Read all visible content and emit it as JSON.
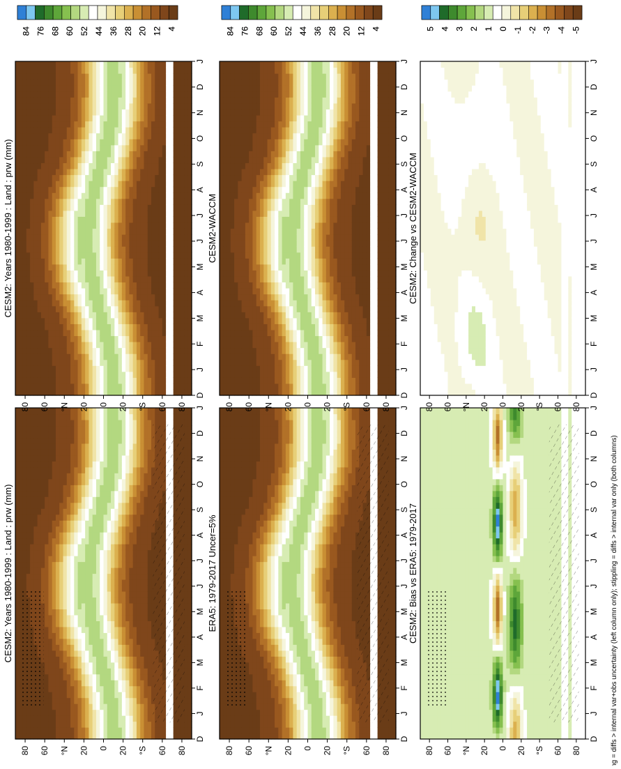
{
  "figure": {
    "footnote": "hatching = diffs > internal var+obs uncertainty (left column only); stippling = diffs > internal var only (both columns)",
    "x_tick_labels": [
      "D",
      "J",
      "F",
      "M",
      "A",
      "M",
      "J",
      "J",
      "A",
      "S",
      "O",
      "N",
      "D",
      "J"
    ],
    "y_tick_labels": [
      "80",
      "60",
      "°N",
      "20",
      "0",
      "20",
      "°S",
      "60",
      "80"
    ]
  },
  "colorbars": {
    "absolute": {
      "labels": [
        "84",
        "76",
        "68",
        "60",
        "52",
        "44",
        "36",
        "28",
        "20",
        "12",
        "4"
      ],
      "colors": [
        "#2f80d6",
        "#7ec7f0",
        "#1f6b2a",
        "#3e8a2d",
        "#5ea63a",
        "#86c04f",
        "#b3d880",
        "#d7ecb3",
        "#ffffff",
        "#f5f5dc",
        "#f0e4a8",
        "#e7cf78",
        "#dbb04f",
        "#c98f34",
        "#b27128",
        "#99581f",
        "#7f461b",
        "#6a3c17"
      ]
    },
    "difference": {
      "labels": [
        "5",
        "4",
        "3",
        "2",
        "1",
        "0",
        "-1",
        "-2",
        "-3",
        "-4",
        "-5"
      ],
      "colors": [
        "#2f80d6",
        "#7ec7f0",
        "#1f6b2a",
        "#3e8a2d",
        "#5ea63a",
        "#86c04f",
        "#b3d880",
        "#d7ecb3",
        "#ffffff",
        "#f5f5dc",
        "#f0e4a8",
        "#e7cf78",
        "#dbb04f",
        "#c98f34",
        "#b27128",
        "#99581f",
        "#7f461b",
        "#6a3c17"
      ]
    }
  },
  "chart_data": [
    {
      "type": "heatmap",
      "title": "CESM2: Years 1980-1999 : Land : prw (mm)",
      "x": [
        "D",
        "J",
        "F",
        "M",
        "A",
        "M",
        "J",
        "J",
        "A",
        "S",
        "O",
        "N",
        "D",
        "J"
      ],
      "y": [
        -80,
        -60,
        -40,
        -20,
        0,
        20,
        40,
        60,
        80
      ],
      "field": "climatology",
      "peak_value_approx": 60,
      "hatching": true,
      "stippling": true
    },
    {
      "type": "heatmap",
      "title": "CESM2: Years 1980-1999 : Land : prw (mm)",
      "x": [
        "D",
        "J",
        "F",
        "M",
        "A",
        "M",
        "J",
        "J",
        "A",
        "S",
        "O",
        "N",
        "D",
        "J"
      ],
      "y": [
        -80,
        -60,
        -40,
        -20,
        0,
        20,
        40,
        60,
        80
      ],
      "field": "climatology",
      "peak_value_approx": 60,
      "hatching": false,
      "stippling": false
    },
    {
      "type": "heatmap",
      "title": "ERA5: 1979-2017 Uncer=5%",
      "x": [
        "D",
        "J",
        "F",
        "M",
        "A",
        "M",
        "J",
        "J",
        "A",
        "S",
        "O",
        "N",
        "D",
        "J"
      ],
      "y": [
        -80,
        -60,
        -40,
        -20,
        0,
        20,
        40,
        60,
        80
      ],
      "field": "climatology",
      "peak_value_approx": 60,
      "hatching": true,
      "stippling": true
    },
    {
      "type": "heatmap",
      "title": "CESM2-WACCM",
      "x": [
        "D",
        "J",
        "F",
        "M",
        "A",
        "M",
        "J",
        "J",
        "A",
        "S",
        "O",
        "N",
        "D",
        "J"
      ],
      "y": [
        -80,
        -60,
        -40,
        -20,
        0,
        20,
        40,
        60,
        80
      ],
      "field": "climatology",
      "peak_value_approx": 60,
      "hatching": false,
      "stippling": false
    },
    {
      "type": "heatmap",
      "title": "CESM2: Bias vs ERA5: 1979-2017",
      "x": [
        "D",
        "J",
        "F",
        "M",
        "A",
        "M",
        "J",
        "J",
        "A",
        "S",
        "O",
        "N",
        "D",
        "J"
      ],
      "y": [
        -80,
        -60,
        -40,
        -20,
        0,
        20,
        40,
        60,
        80
      ],
      "field": "difference",
      "range_approx": [
        -5,
        5
      ],
      "hatching": true,
      "stippling": true
    },
    {
      "type": "heatmap",
      "title": "CESM2: Change vs CESM2-WACCM",
      "x": [
        "D",
        "J",
        "F",
        "M",
        "A",
        "M",
        "J",
        "J",
        "A",
        "S",
        "O",
        "N",
        "D",
        "J"
      ],
      "y": [
        -80,
        -60,
        -40,
        -20,
        0,
        20,
        40,
        60,
        80
      ],
      "field": "difference",
      "range_approx": [
        -1,
        2
      ],
      "hatching": false,
      "stippling": false
    }
  ]
}
